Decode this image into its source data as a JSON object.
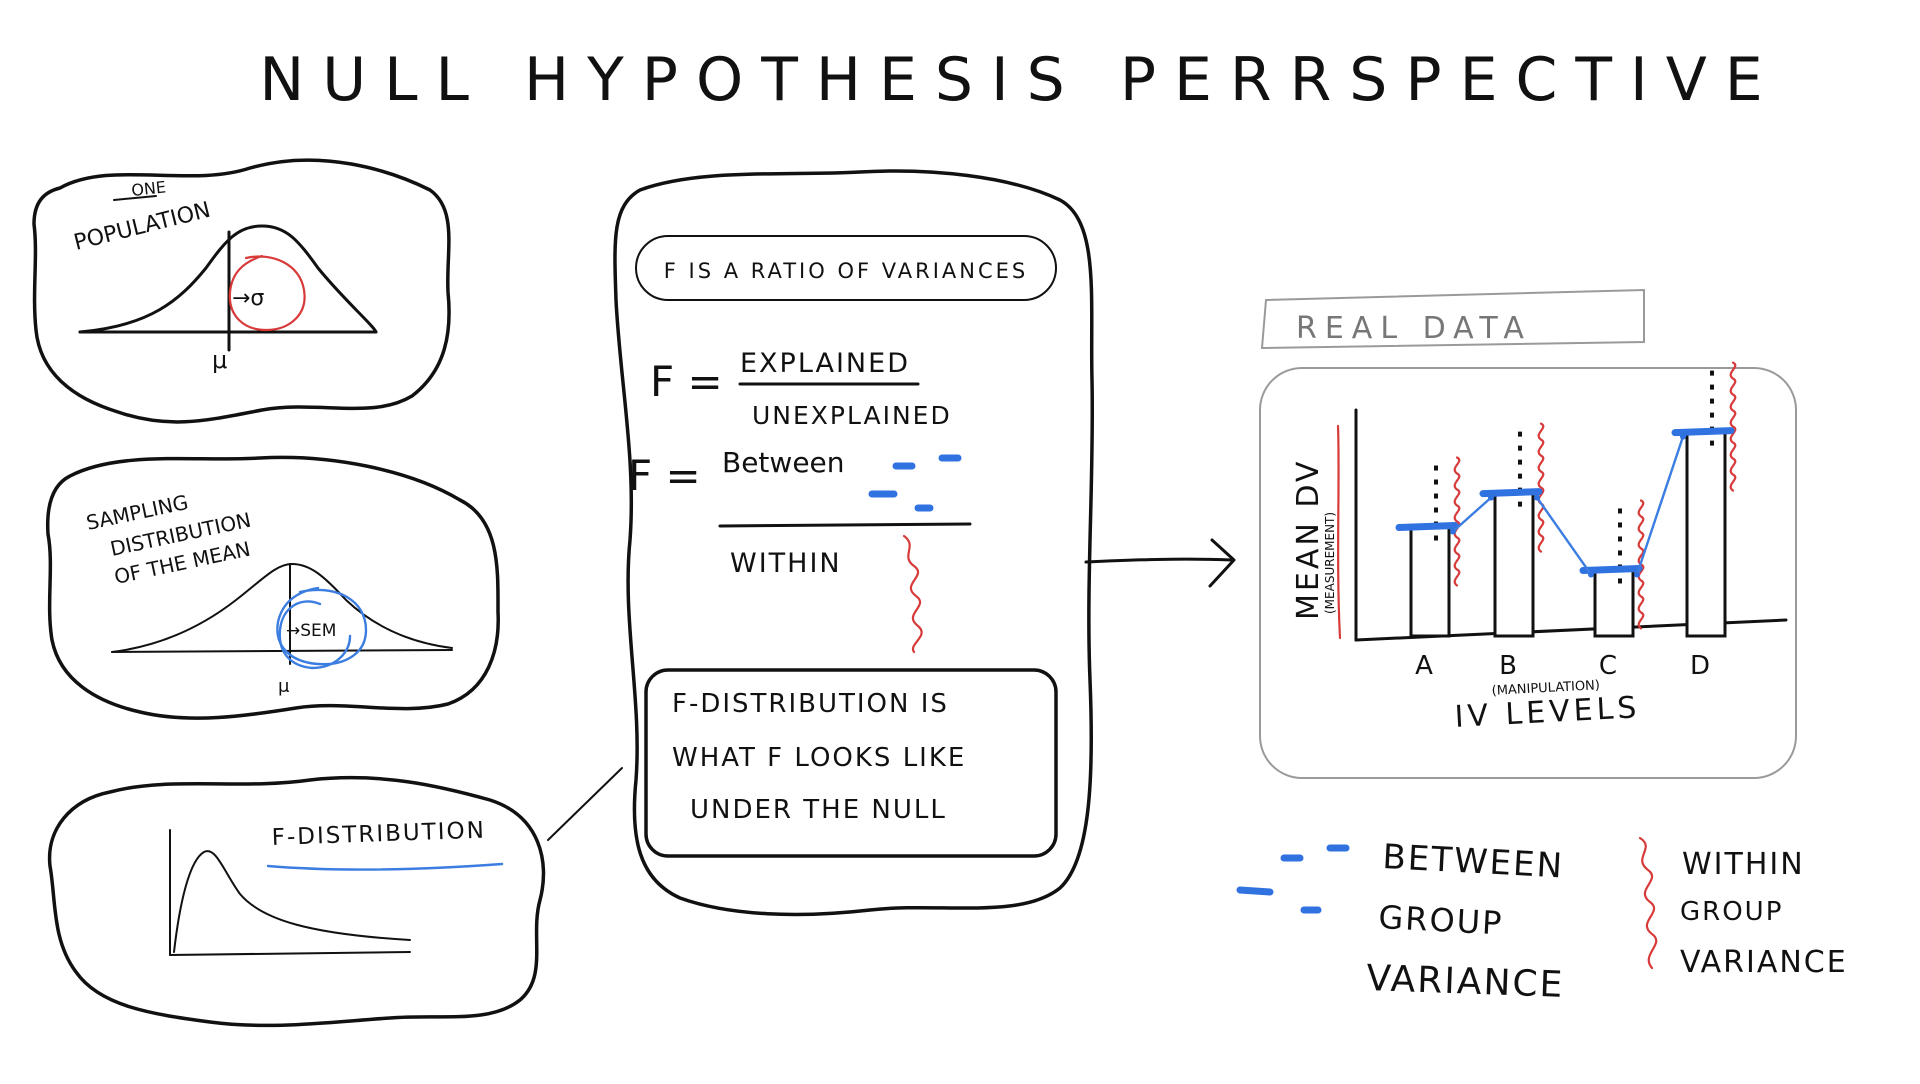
{
  "title": "NULL HYPOTHESIS PERRSPECTIVE",
  "population_panel": {
    "one_label": "ONE",
    "population_label": "POPULATION",
    "sigma_label": "→σ",
    "mu_label": "μ"
  },
  "sampling_panel": {
    "heading_line1": "SAMPLING",
    "heading_line2": "DISTRIBUTION",
    "heading_line3": "OF THE MEAN",
    "sem_label": "→SEM",
    "mu_label": "μ"
  },
  "f_dist_panel": {
    "label": "F-DISTRIBUTION"
  },
  "center_panel": {
    "ratio_banner": "F IS A RATIO OF VARIANCES",
    "f_symbol_1": "F =",
    "numerator_1": "EXPLAINED",
    "denominator_1": "UNEXPLAINED",
    "f_symbol_2": "F =",
    "numerator_2": "Between",
    "denominator_2": "WITHIN",
    "box_line1": "F-DISTRIBUTION IS",
    "box_line2": "WHAT F LOOKS LIKE",
    "box_line3": "UNDER THE NULL"
  },
  "real_data_panel": {
    "tab_label": "REAL DATA",
    "y_label": "MEAN DV",
    "y_sublabel": "(MEASUREMENT)",
    "x_label": "IV LEVELS",
    "x_sublabel": "(MANIPULATION)"
  },
  "legend": {
    "between_line1": "BETWEEN",
    "between_line2": "GROUP",
    "between_line3": "VARIANCE",
    "within_line1": "WITHIN",
    "within_line2": "GROUP",
    "within_line3": "VARIANCE"
  },
  "chart_data": {
    "type": "bar",
    "categories": [
      "A",
      "B",
      "C",
      "D"
    ],
    "values": [
      48,
      63,
      29,
      90
    ],
    "ylim": [
      0,
      100
    ],
    "xlabel": "IV LEVELS",
    "ylabel": "MEAN DV",
    "grid": false
  },
  "colors": {
    "ink": "#111111",
    "between": "#2f72e0",
    "within": "#d83a3a",
    "panel_border": "#9a9a9a"
  }
}
